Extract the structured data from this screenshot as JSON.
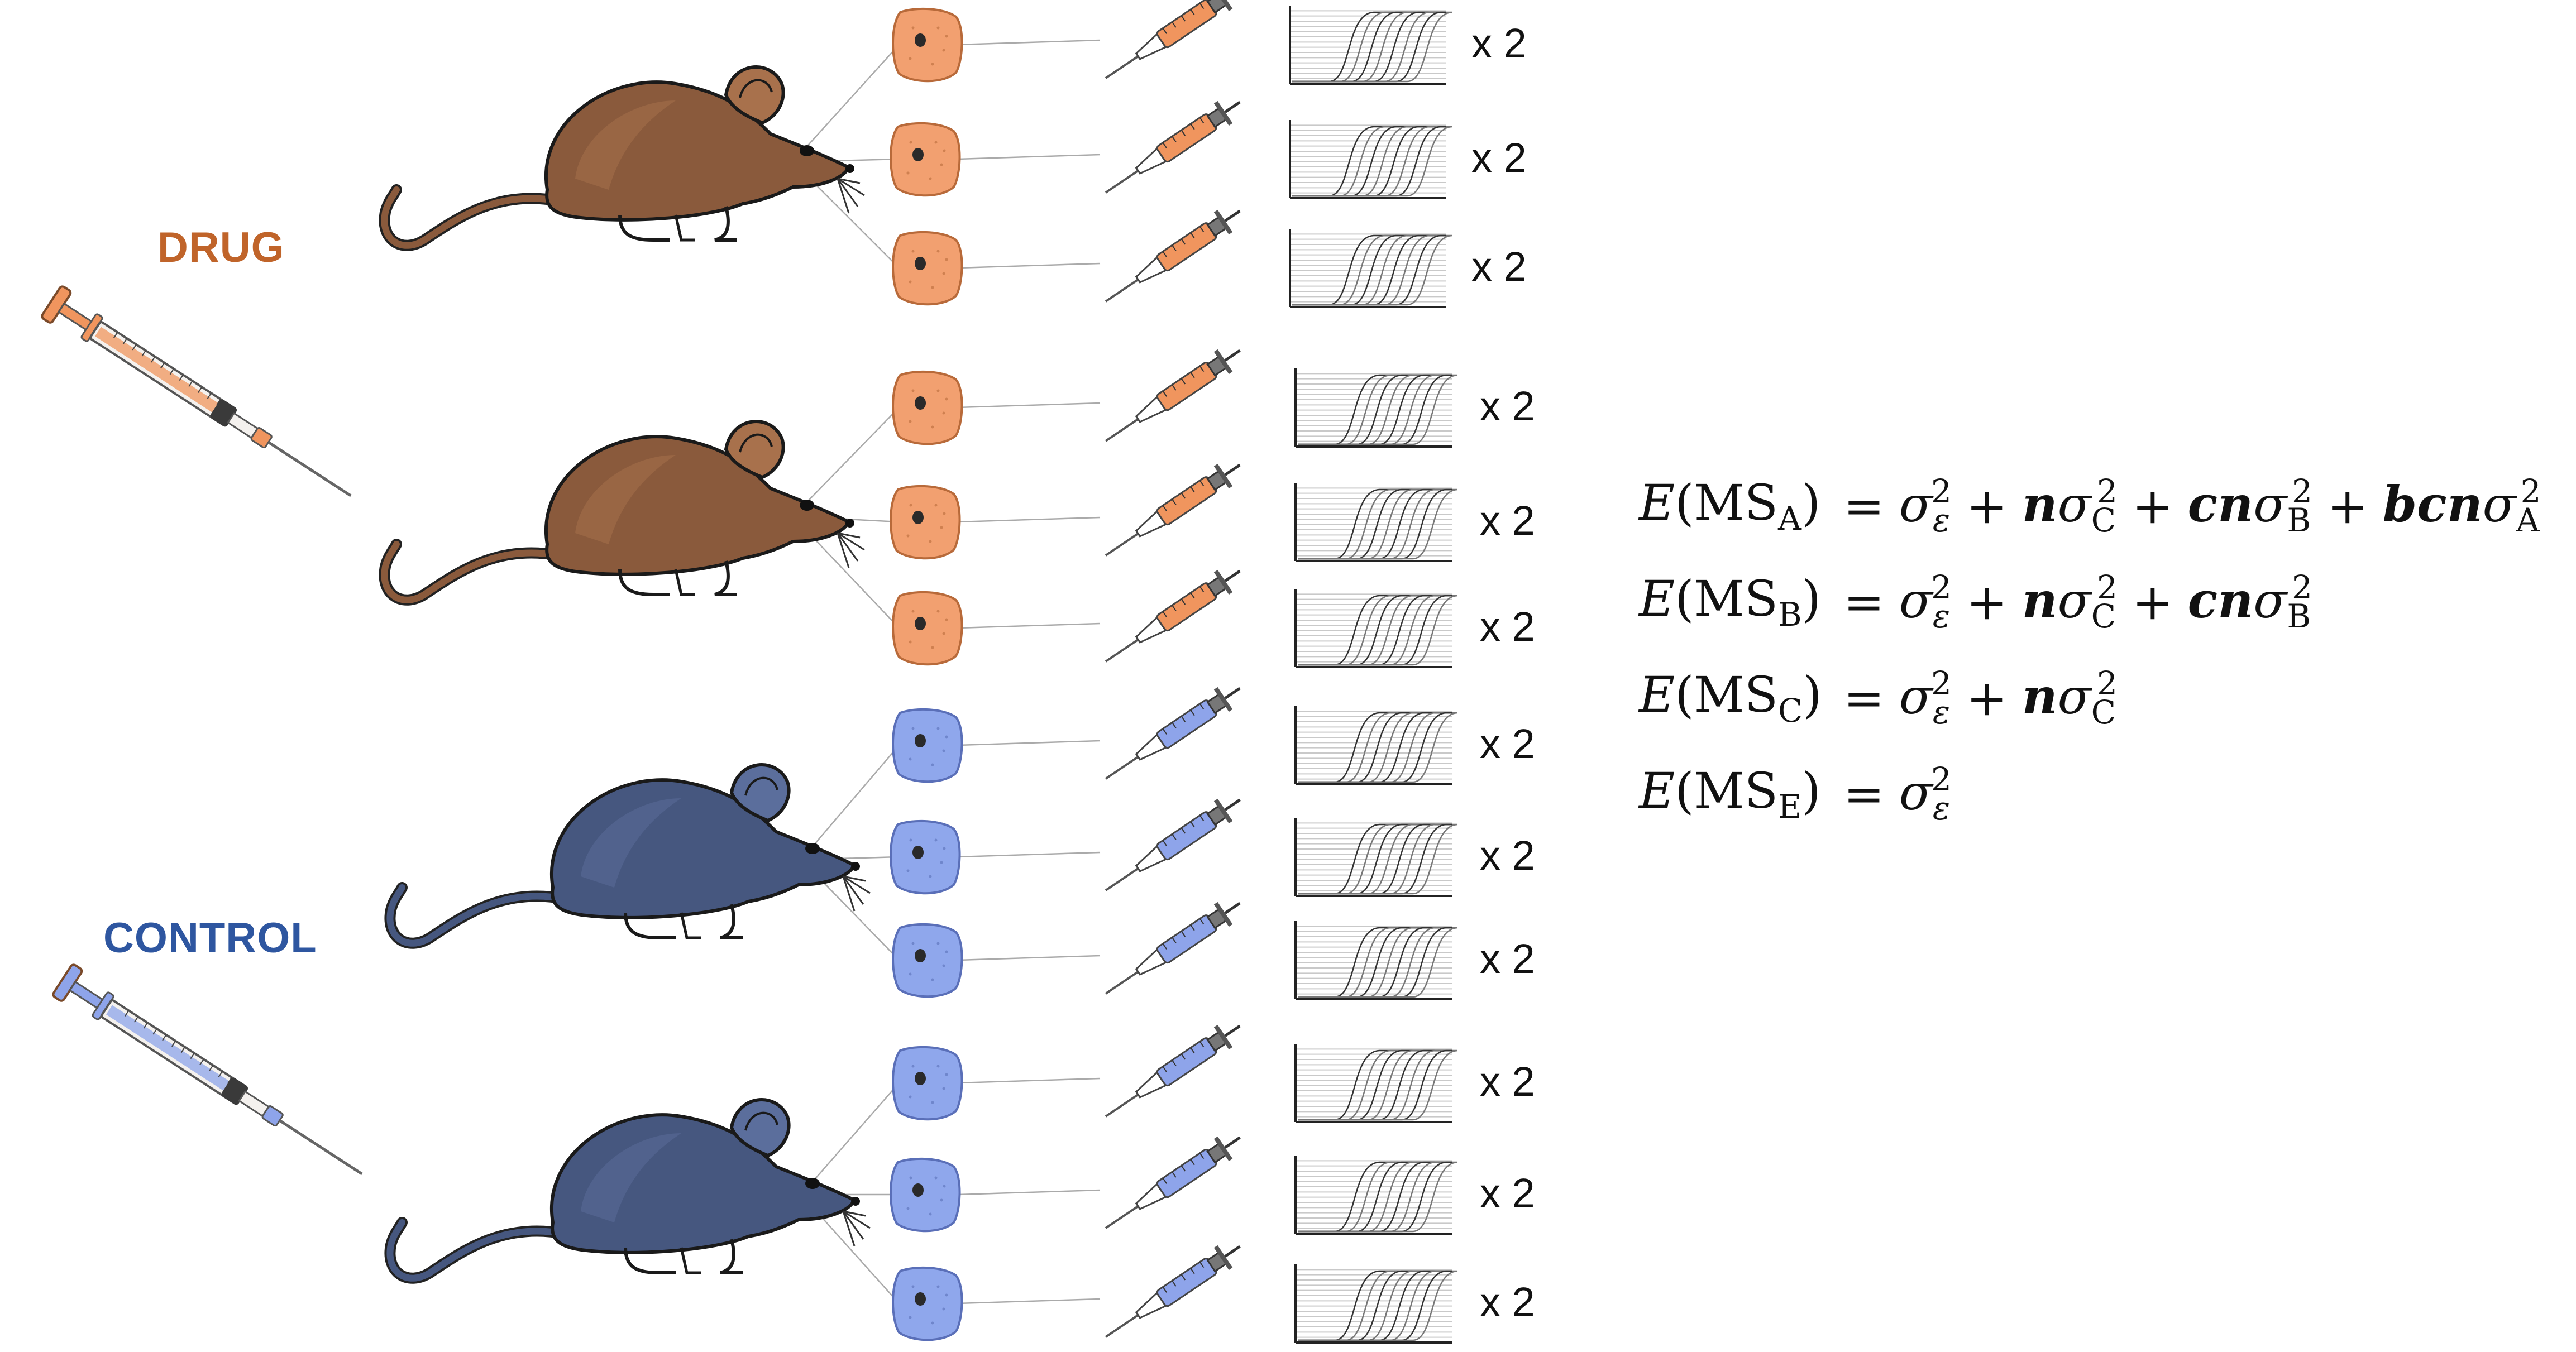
{
  "groups": [
    {
      "label": "DRUG",
      "color": "#c0642a",
      "mouse_fill": "#8a5a3c",
      "mouse_light": "#a8714c",
      "cell_fill": "#f2a070",
      "cell_stroke": "#b86a3a",
      "pipette_fill": "#f0955e"
    },
    {
      "label": "CONTROL",
      "color": "#2e56a0",
      "mouse_fill": "#46577f",
      "mouse_light": "#5b6e9c",
      "cell_fill": "#8fa7ec",
      "cell_stroke": "#5a6fb8",
      "pipette_fill": "#8ea4ea"
    }
  ],
  "replicate_label": "x 2",
  "equations": [
    {
      "lhs_ms": "MS",
      "lhs_sub": "A",
      "terms": [
        {
          "coef": "",
          "sub": "ε"
        },
        {
          "coef": "n",
          "sub": "C"
        },
        {
          "coef": "cn",
          "sub": "B"
        },
        {
          "coef": "bcn",
          "sub": "A"
        }
      ]
    },
    {
      "lhs_ms": "MS",
      "lhs_sub": "B",
      "terms": [
        {
          "coef": "",
          "sub": "ε"
        },
        {
          "coef": "n",
          "sub": "C"
        },
        {
          "coef": "cn",
          "sub": "B"
        }
      ]
    },
    {
      "lhs_ms": "MS",
      "lhs_sub": "C",
      "terms": [
        {
          "coef": "",
          "sub": "ε"
        },
        {
          "coef": "n",
          "sub": "C"
        }
      ]
    },
    {
      "lhs_ms": "MS",
      "lhs_sub": "E",
      "terms": [
        {
          "coef": "",
          "sub": "ε"
        }
      ]
    }
  ]
}
